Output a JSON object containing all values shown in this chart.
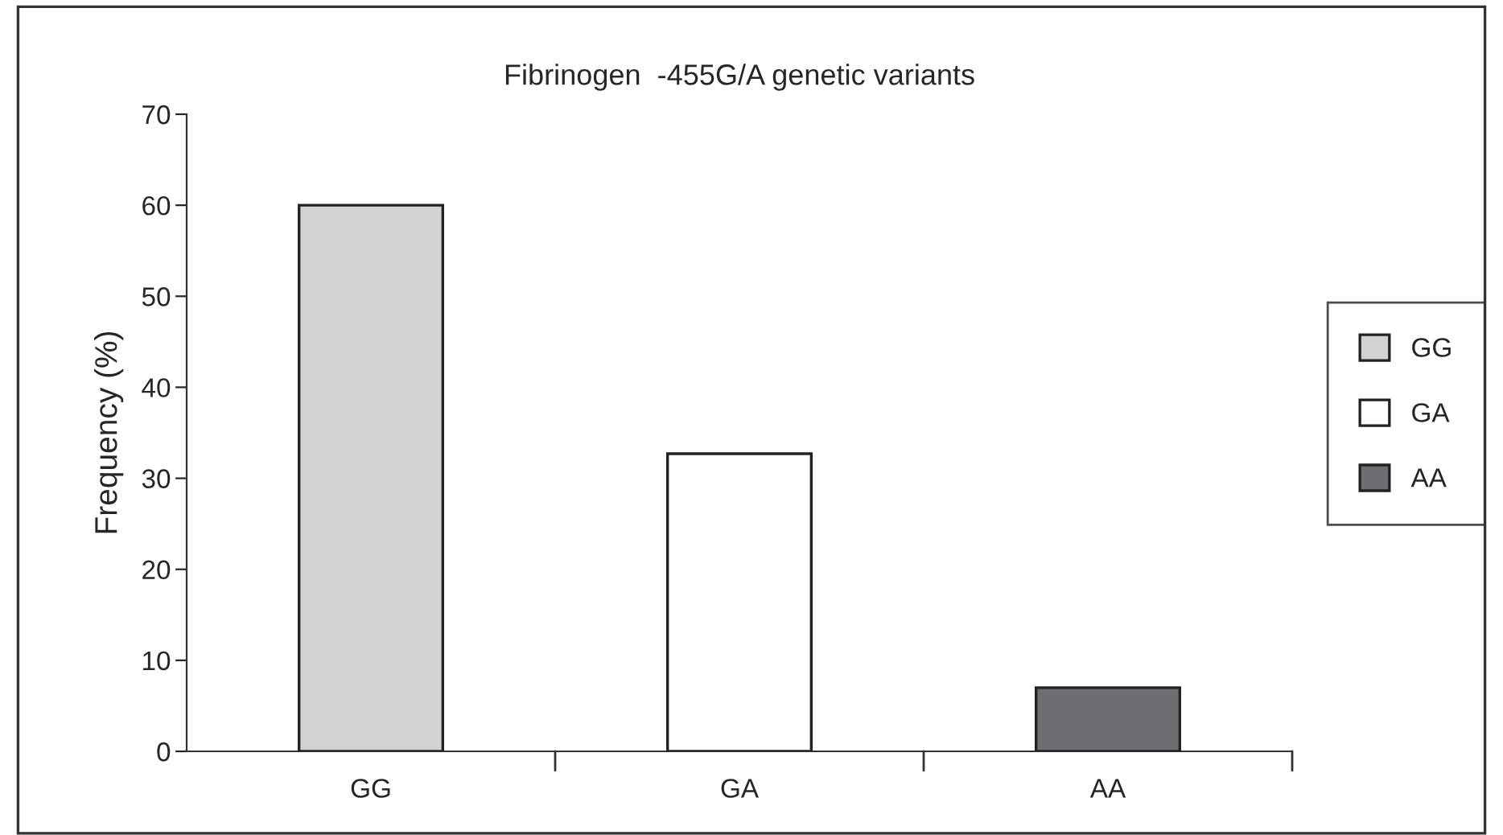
{
  "chart_data": {
    "type": "bar",
    "title": "Fibrinogen  -455G/A genetic variants",
    "ylabel": "Frequency (%)",
    "categories": [
      "GG",
      "GA",
      "AA"
    ],
    "series": [
      {
        "name": "GG",
        "color": "#d1d2d4",
        "values": [
          60,
          null,
          null
        ]
      },
      {
        "name": "GA",
        "color": "#ffffff",
        "values": [
          null,
          32.7,
          null
        ]
      },
      {
        "name": "AA",
        "color": "#6d6e71",
        "values": [
          null,
          null,
          7.0
        ]
      }
    ],
    "ylim": [
      0,
      70
    ],
    "yticks": [
      0,
      10,
      20,
      30,
      40,
      50,
      60,
      70
    ],
    "grid": false,
    "legend": "right"
  }
}
